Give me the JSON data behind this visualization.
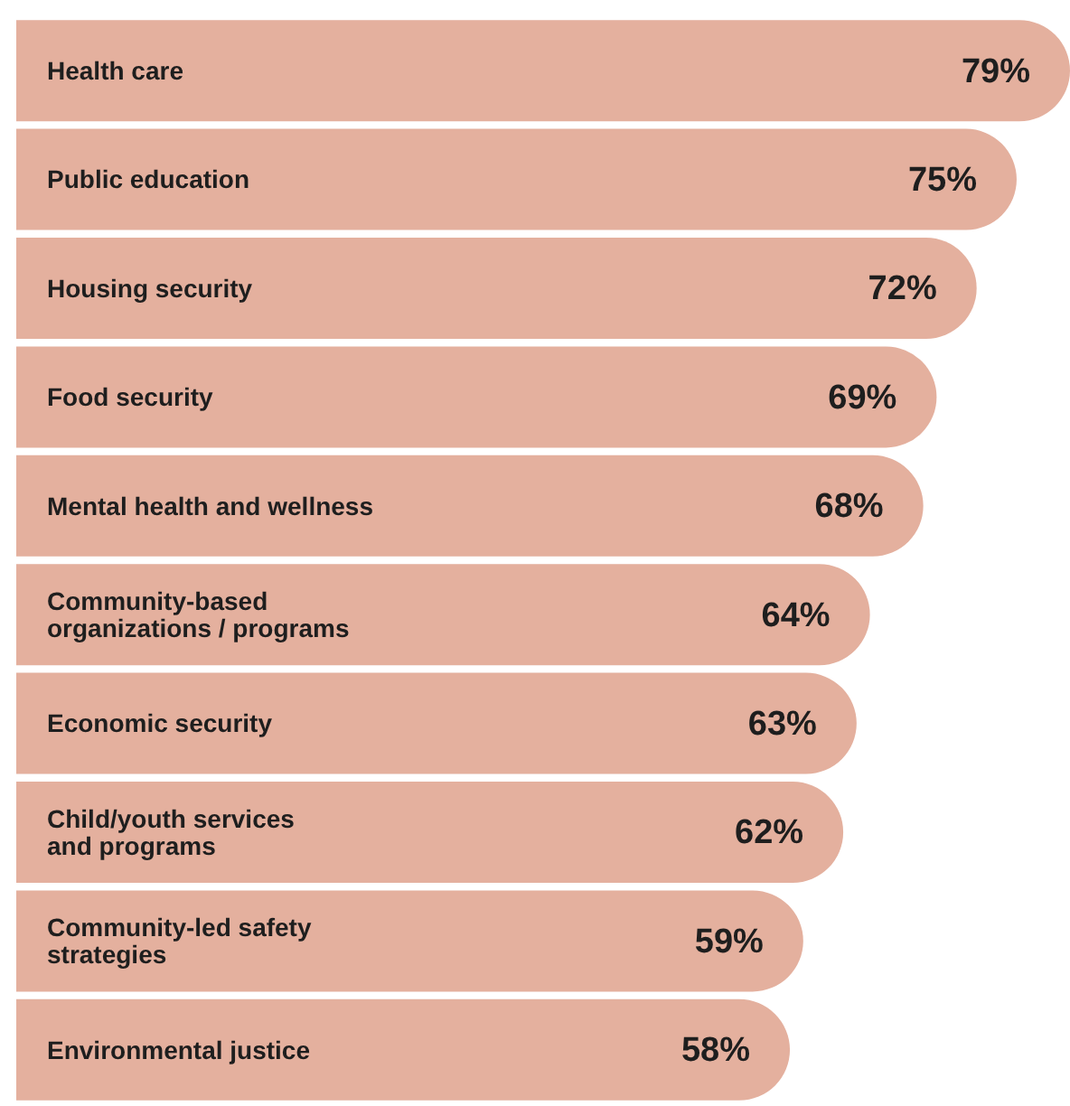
{
  "chart_data": {
    "type": "bar",
    "orientation": "horizontal",
    "categories": [
      "Health care",
      "Public education",
      "Housing security",
      "Food security",
      "Mental health and wellness",
      "Community-based\norganizations / programs",
      "Economic security",
      "Child/youth services\nand programs",
      "Community-led safety\nstrategies",
      "Environmental justice"
    ],
    "values": [
      79,
      75,
      72,
      69,
      68,
      64,
      63,
      62,
      59,
      58
    ],
    "value_labels": [
      "79%",
      "75%",
      "72%",
      "69%",
      "68%",
      "64%",
      "63%",
      "62%",
      "59%",
      "58%"
    ],
    "color": "#e4b09e"
  }
}
